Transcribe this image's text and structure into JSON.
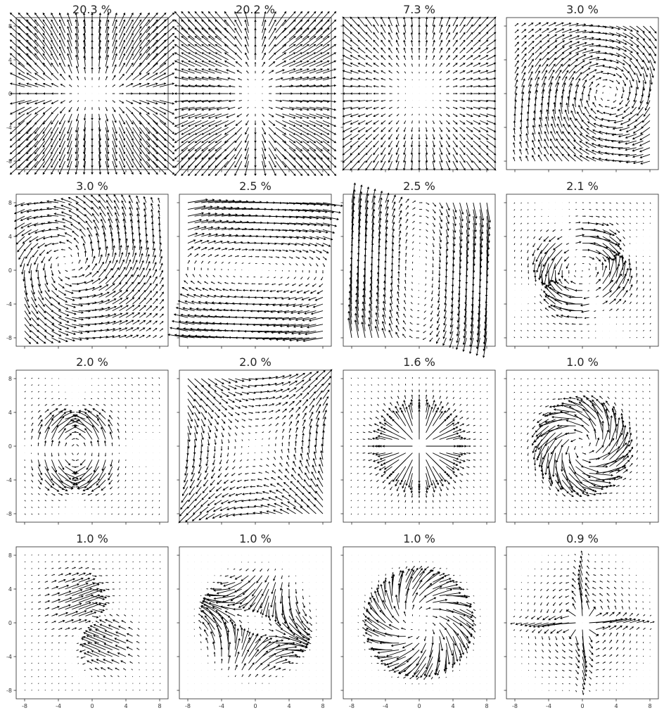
{
  "chart_data": {
    "type": "quiver",
    "layout": {
      "rows": 4,
      "cols": 4
    },
    "xlim": [
      -9,
      9
    ],
    "ylim": [
      -9,
      9
    ],
    "xticks": [
      -8,
      -4,
      0,
      4,
      8
    ],
    "yticks": [
      -8,
      -4,
      0,
      4,
      8
    ],
    "xtick_labels": [
      "-8",
      "-4",
      "0",
      "4",
      "8"
    ],
    "ytick_labels": [
      "-8",
      "-4",
      "0",
      "4",
      "8"
    ],
    "grid": false,
    "arrow_color": "#000000",
    "panels": [
      {
        "title": "20.3 %",
        "pattern": "vertical-diverge"
      },
      {
        "title": "20.2 %",
        "pattern": "horizontal-diverge"
      },
      {
        "title": "7.3 %",
        "pattern": "source"
      },
      {
        "title": "3.0 %",
        "pattern": "curl-right"
      },
      {
        "title": "3.0 %",
        "pattern": "curl-left"
      },
      {
        "title": "2.5 %",
        "pattern": "rotation-horizontal"
      },
      {
        "title": "2.5 %",
        "pattern": "rotation-vertical"
      },
      {
        "title": "2.1 %",
        "pattern": "ring-diagonal"
      },
      {
        "title": "2.0 %",
        "pattern": "ring-left"
      },
      {
        "title": "2.0 %",
        "pattern": "saddle"
      },
      {
        "title": "1.6 %",
        "pattern": "point-source"
      },
      {
        "title": "1.0 %",
        "pattern": "vortex"
      },
      {
        "title": "1.0 %",
        "pattern": "double-swirl"
      },
      {
        "title": "1.0 %",
        "pattern": "ring-diagonal-b"
      },
      {
        "title": "1.0 %",
        "pattern": "ring-antidiagonal"
      },
      {
        "title": "0.9 %",
        "pattern": "cross"
      }
    ]
  }
}
